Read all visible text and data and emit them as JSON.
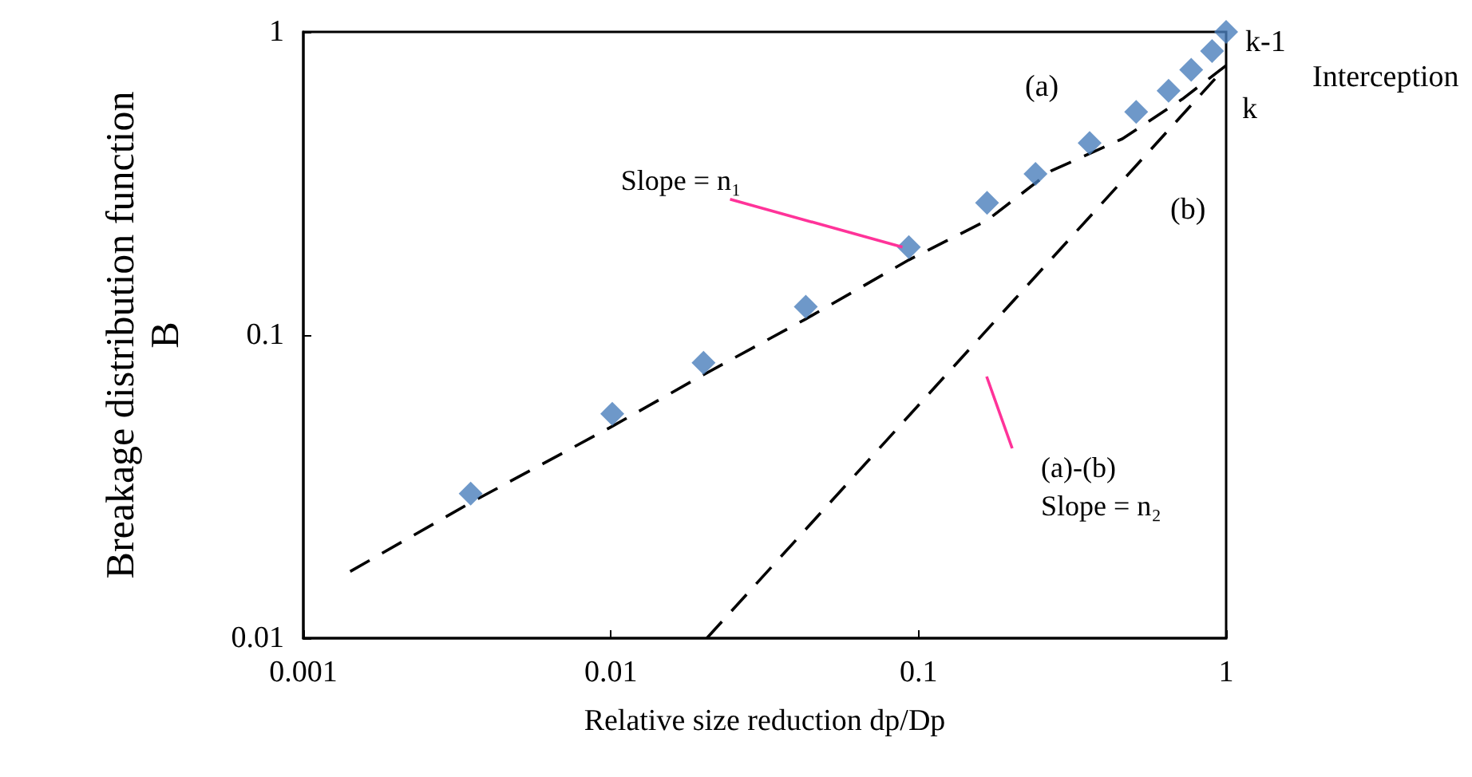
{
  "chart_data": {
    "type": "scatter",
    "xlabel": "Relative size reduction dp/Dp",
    "ylabel": "Breakage distribution function\nB",
    "log": "xy",
    "xlim": [
      0.001,
      1
    ],
    "ylim": [
      0.01,
      1
    ],
    "xticks": [
      0.001,
      0.01,
      0.1,
      1
    ],
    "yticks": [
      0.01,
      0.1,
      1
    ],
    "grid": false,
    "series": [
      {
        "type": "line",
        "color": "#000000",
        "line_style": "dashed",
        "marker": "none",
        "x": [
          0.00142,
          0.0035,
          0.0101,
          0.02,
          0.043,
          0.093,
          0.167,
          0.27,
          0.46,
          0.72,
          1.0
        ],
        "values": [
          0.0166,
          0.028,
          0.05,
          0.074,
          0.113,
          0.177,
          0.239,
          0.348,
          0.444,
          0.6,
          0.775
        ]
      },
      {
        "type": "line",
        "color": "#000000",
        "line_style": "dashed",
        "marker": "none",
        "x": [
          0.0205,
          0.92
        ],
        "values": [
          0.01,
          0.7
        ]
      },
      {
        "color": "#4a7ebb",
        "marker": "diamond",
        "x": [
          0.0035,
          0.0101,
          0.02,
          0.043,
          0.093,
          0.167,
          0.24,
          0.36,
          0.51,
          0.65,
          0.77,
          0.9,
          1.0
        ],
        "values": [
          0.03,
          0.055,
          0.081,
          0.124,
          0.195,
          0.273,
          0.34,
          0.43,
          0.545,
          0.64,
          0.75,
          0.865,
          1.0
        ]
      }
    ],
    "annotations": [
      {
        "text": "Slope = n₁",
        "x": 0.093,
        "y": 0.195
      },
      "(a)-(b)\nSlope = n₂",
      "(a)",
      "(b)",
      "Interception",
      "k-1",
      "k"
    ]
  }
}
